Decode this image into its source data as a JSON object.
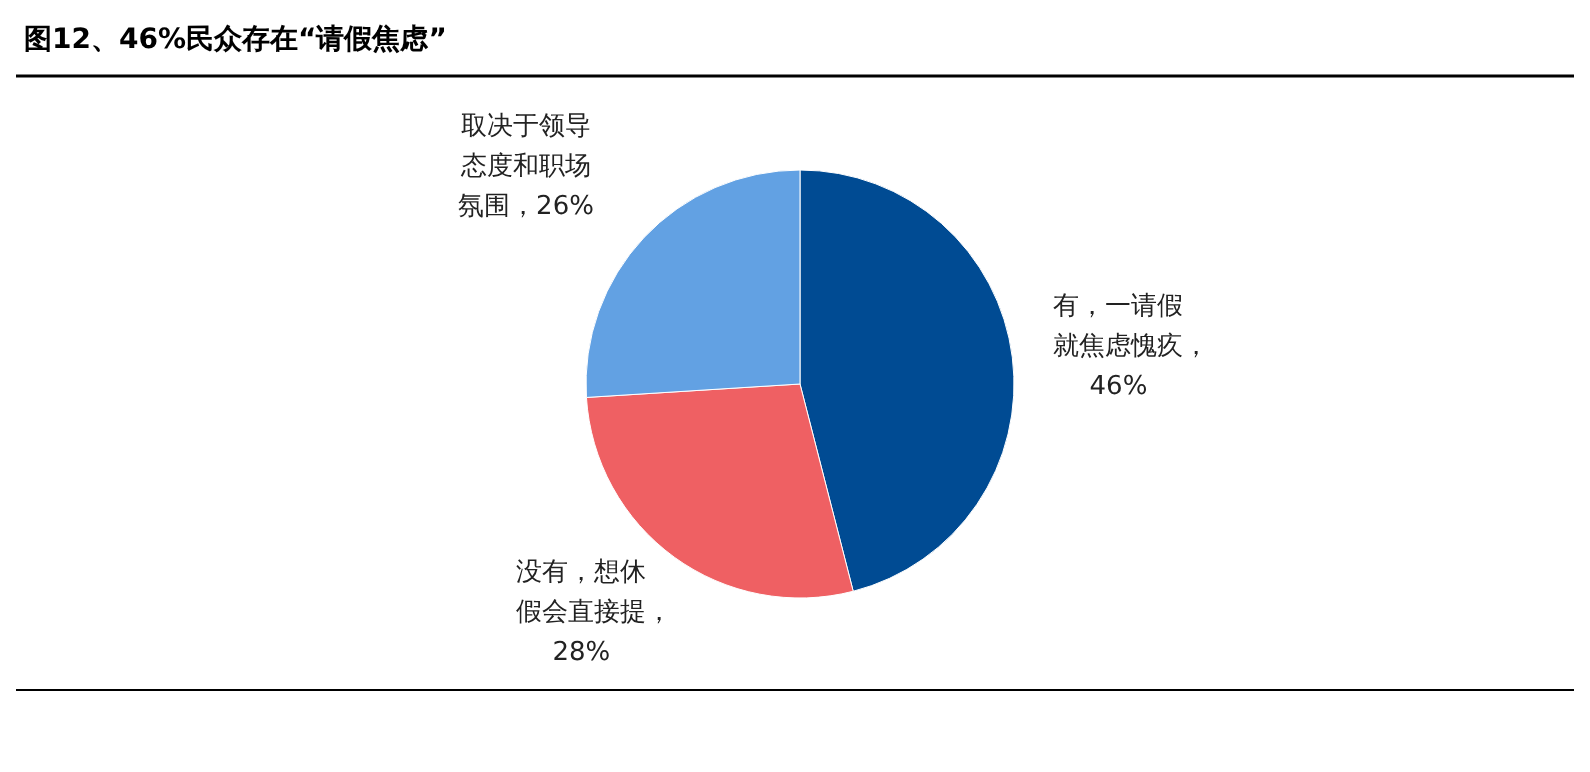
{
  "chart_data": {
    "type": "pie",
    "title": "图12、46%民众存在“请假焦虑”",
    "categories": [
      "有，一请假就焦虑愧疚",
      "没有，想休假会直接提",
      "取决于领导态度和职场氛围"
    ],
    "values": [
      46,
      28,
      26
    ],
    "value_labels": [
      "，46%",
      "，28%",
      "，26%"
    ],
    "colors": [
      "#004b93",
      "#ef6063",
      "#62a1e3"
    ]
  }
}
